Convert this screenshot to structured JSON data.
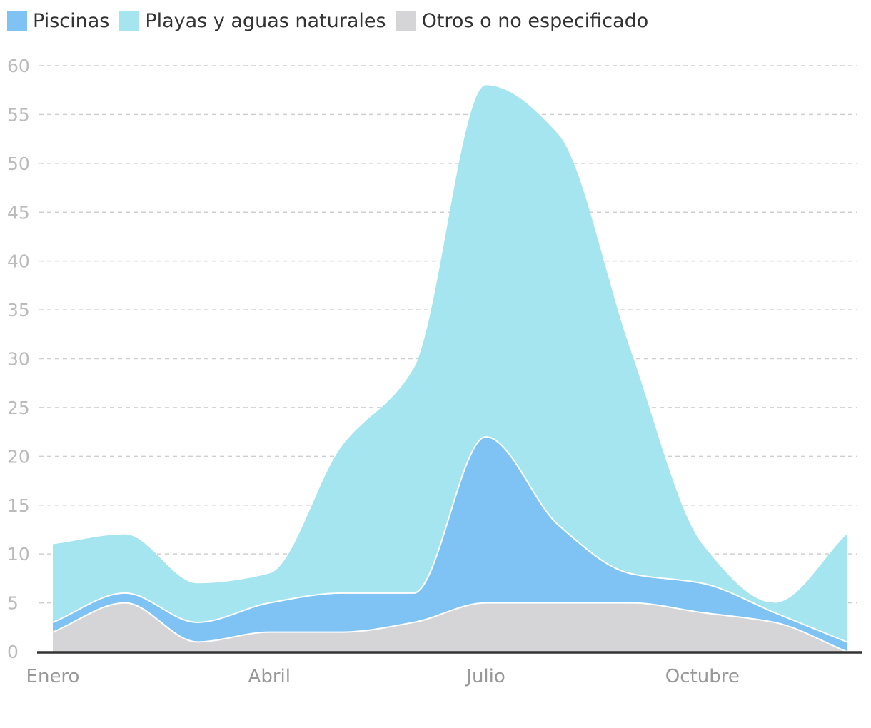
{
  "legend": [
    {
      "label": "Piscinas",
      "color": "#7fc3f5"
    },
    {
      "label": "Playas y aguas naturales",
      "color": "#a4e5f0"
    },
    {
      "label": "Otros o no especificado",
      "color": "#d5d5d7"
    }
  ],
  "chart_data": {
    "type": "area",
    "stacked": true,
    "x": [
      1,
      2,
      3,
      4,
      5,
      6,
      7,
      8,
      9,
      10,
      11,
      12
    ],
    "x_tick_labels": [
      {
        "x": 1,
        "label": "Enero"
      },
      {
        "x": 4,
        "label": "Abril"
      },
      {
        "x": 7,
        "label": "Julio"
      },
      {
        "x": 10,
        "label": "Octubre"
      }
    ],
    "y_ticks": [
      0,
      5,
      10,
      15,
      20,
      25,
      30,
      35,
      40,
      45,
      50,
      55,
      60
    ],
    "ylim": [
      0,
      60
    ],
    "grid": true,
    "legend_position": "top-left",
    "series": [
      {
        "name": "Otros o no especificado",
        "color": "#d5d5d7",
        "values": [
          2,
          5,
          1,
          2,
          2,
          3,
          5,
          5,
          5,
          4,
          3,
          0
        ]
      },
      {
        "name": "Piscinas",
        "color": "#7fc3f5",
        "values": [
          1,
          1,
          2,
          3,
          4,
          3,
          17,
          8,
          3,
          3,
          1,
          1
        ]
      },
      {
        "name": "Playas y aguas naturales",
        "color": "#a4e5f0",
        "values": [
          8,
          6,
          4,
          3,
          15,
          23,
          36,
          40,
          23,
          4,
          1,
          11
        ]
      }
    ]
  }
}
